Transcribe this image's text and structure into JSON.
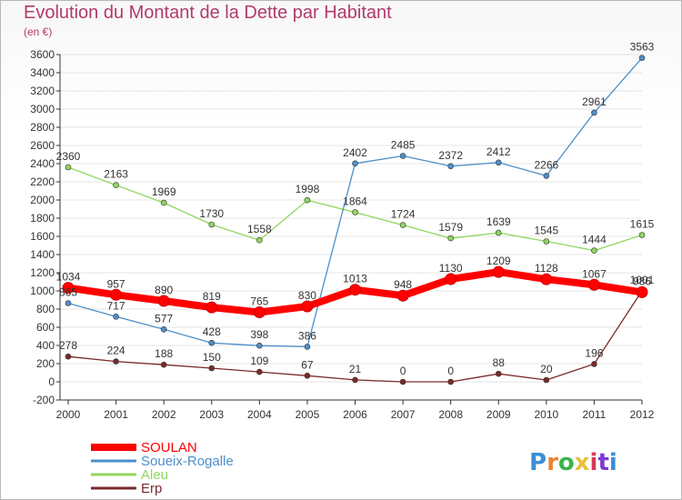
{
  "header": {
    "title": "Evolution du Montant de la Dette par Habitant",
    "unit": "(en €)"
  },
  "logo": {
    "text": "Proxiti"
  },
  "colors": {
    "title": "#b23a6b",
    "axis": "#333333",
    "grid": "#e4e4e4"
  },
  "chart_data": {
    "type": "line",
    "title": "Evolution du Montant de la Dette par Habitant",
    "ylabel": "(en €)",
    "xlabel": "",
    "x": [
      "2000",
      "2001",
      "2002",
      "2003",
      "2004",
      "2005",
      "2006",
      "2007",
      "2008",
      "2009",
      "2010",
      "2011",
      "2012"
    ],
    "ylim": [
      -200,
      3600
    ],
    "ytick_step": 200,
    "grid": true,
    "legend": "bottom-left",
    "series": [
      {
        "name": "SOULAN",
        "color": "#ff0000",
        "values": [
          1034,
          957,
          890,
          819,
          765,
          830,
          1013,
          948,
          1130,
          1209,
          1128,
          1067,
          986
        ]
      },
      {
        "name": "Soueix-Rogalle",
        "color": "#4d8fc9",
        "values": [
          865,
          717,
          577,
          428,
          398,
          386,
          2402,
          2485,
          2372,
          2412,
          2266,
          2961,
          3563
        ]
      },
      {
        "name": "Aleu",
        "color": "#8fd65f",
        "values": [
          2360,
          2163,
          1969,
          1730,
          1558,
          1998,
          1864,
          1724,
          1579,
          1639,
          1545,
          1444,
          1615
        ]
      },
      {
        "name": "Erp",
        "color": "#7a2a2a",
        "values": [
          278,
          224,
          188,
          150,
          109,
          67,
          21,
          0,
          0,
          88,
          20,
          196,
          1001
        ]
      }
    ]
  }
}
